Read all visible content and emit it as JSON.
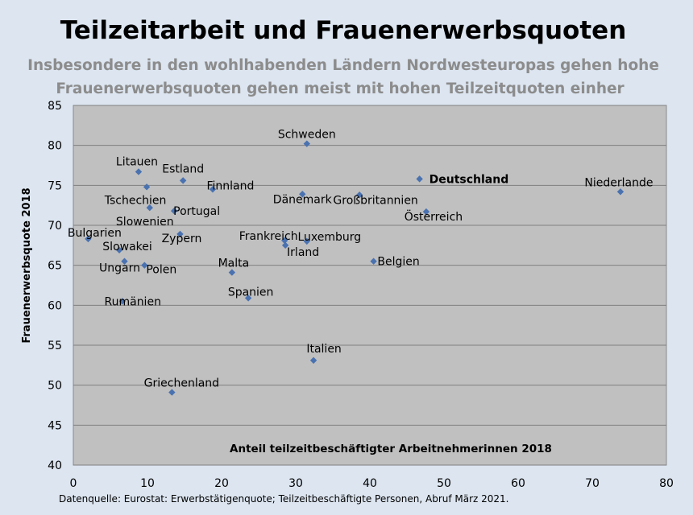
{
  "chart_data": {
    "type": "scatter",
    "title": "Teilzeitarbeit und Frauenerwerbsquoten",
    "subtitle": [
      "Insbesondere in den wohlhabenden Ländern Nordwesteuropas gehen hohe",
      "Frauenerwerbsquoten gehen meist mit hohen Teilzeitquoten einher"
    ],
    "xlabel": "Anteil teilzeitbeschäftigter Arbeitnehmerinnen 2018",
    "ylabel": "Frauenerwerbsquote 2018",
    "xlim": [
      0,
      80
    ],
    "ylim": [
      40,
      85
    ],
    "xticks": [
      0,
      10,
      20,
      30,
      40,
      50,
      60,
      70,
      80
    ],
    "yticks": [
      40,
      45,
      50,
      55,
      60,
      65,
      70,
      75,
      80,
      85
    ],
    "grid": "horizontal",
    "marker_color": "#4a72b0",
    "plot_background": "#c0c0c0",
    "points": [
      {
        "label": "Schweden",
        "x": 31.5,
        "y": 80.2
      },
      {
        "label": "Litauen",
        "x": 8.8,
        "y": 76.7
      },
      {
        "label": "Estland",
        "x": 14.8,
        "y": 75.6
      },
      {
        "label": "Finnland",
        "x": 18.8,
        "y": 74.5
      },
      {
        "label": "Deutschland",
        "x": 46.7,
        "y": 75.8,
        "bold": true
      },
      {
        "label": "Niederlande",
        "x": 73.8,
        "y": 74.2
      },
      {
        "label": "Dänemark",
        "x": 30.9,
        "y": 73.9
      },
      {
        "label": "Großbritannien",
        "x": 38.6,
        "y": 73.8
      },
      {
        "label": "Österreich",
        "x": 47.6,
        "y": 71.7
      },
      {
        "label": "Tschechien",
        "x": 9.9,
        "y": 74.8
      },
      {
        "label": "Slowenien",
        "x": 10.3,
        "y": 72.2
      },
      {
        "label": "Portugal",
        "x": 13.6,
        "y": 71.8
      },
      {
        "label": "Bulgarien",
        "x": 2.0,
        "y": 68.3
      },
      {
        "label": "Zypern",
        "x": 14.4,
        "y": 68.9
      },
      {
        "label": "Frankreich",
        "x": 28.5,
        "y": 68.1
      },
      {
        "label": "Luxemburg",
        "x": 31.5,
        "y": 68.0
      },
      {
        "label": "Irland",
        "x": 28.6,
        "y": 67.5
      },
      {
        "label": "Slowakei",
        "x": 6.2,
        "y": 66.9
      },
      {
        "label": "Ungarn",
        "x": 6.9,
        "y": 65.5
      },
      {
        "label": "Polen",
        "x": 9.6,
        "y": 65.0
      },
      {
        "label": "Belgien",
        "x": 40.5,
        "y": 65.5
      },
      {
        "label": "Malta",
        "x": 21.4,
        "y": 64.1
      },
      {
        "label": "Spanien",
        "x": 23.6,
        "y": 60.9
      },
      {
        "label": "Rumänien",
        "x": 6.6,
        "y": 60.5
      },
      {
        "label": "Italien",
        "x": 32.4,
        "y": 53.1
      },
      {
        "label": "Griechenland",
        "x": 13.3,
        "y": 49.1
      }
    ]
  },
  "source_note": "Datenquelle: Eurostat: Erwerbstätigenquote; Teilzeitbeschäftigte Personen, Abruf März 2021."
}
